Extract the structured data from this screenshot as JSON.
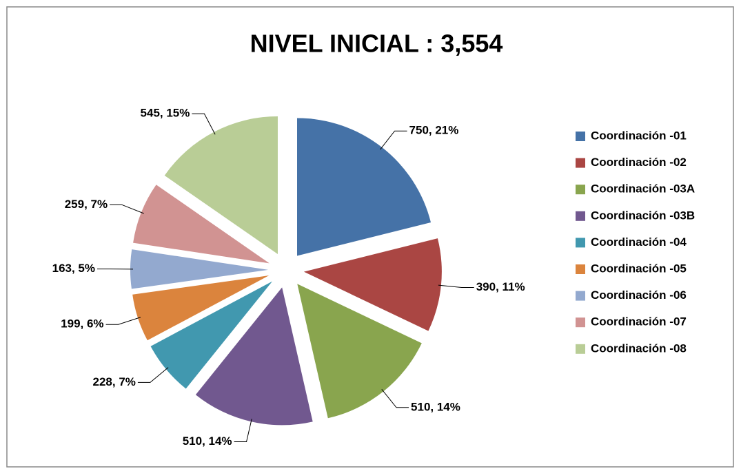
{
  "chart_data": {
    "type": "pie",
    "title": "NIVEL INICIAL : 3,554",
    "categories": [
      "Coordinación -01",
      "Coordinación -02",
      "Coordinación -03A",
      "Coordinación -03B",
      "Coordinación -04",
      "Coordinación -05",
      "Coordinación -06",
      "Coordinación -07",
      "Coordinación -08"
    ],
    "values": [
      750,
      390,
      510,
      510,
      228,
      199,
      163,
      259,
      545
    ],
    "value_labels": [
      "750, 21%",
      "390, 11%",
      "510, 14%",
      "510, 14%",
      "228, 7%",
      "199, 6%",
      "163, 5%",
      "259, 7%",
      "545, 15%"
    ],
    "colors": [
      "#4572a7",
      "#aa4643",
      "#89a54e",
      "#71588f",
      "#4198af",
      "#db843d",
      "#93a9cf",
      "#d19392",
      "#b9cd96"
    ],
    "legend": "right"
  }
}
